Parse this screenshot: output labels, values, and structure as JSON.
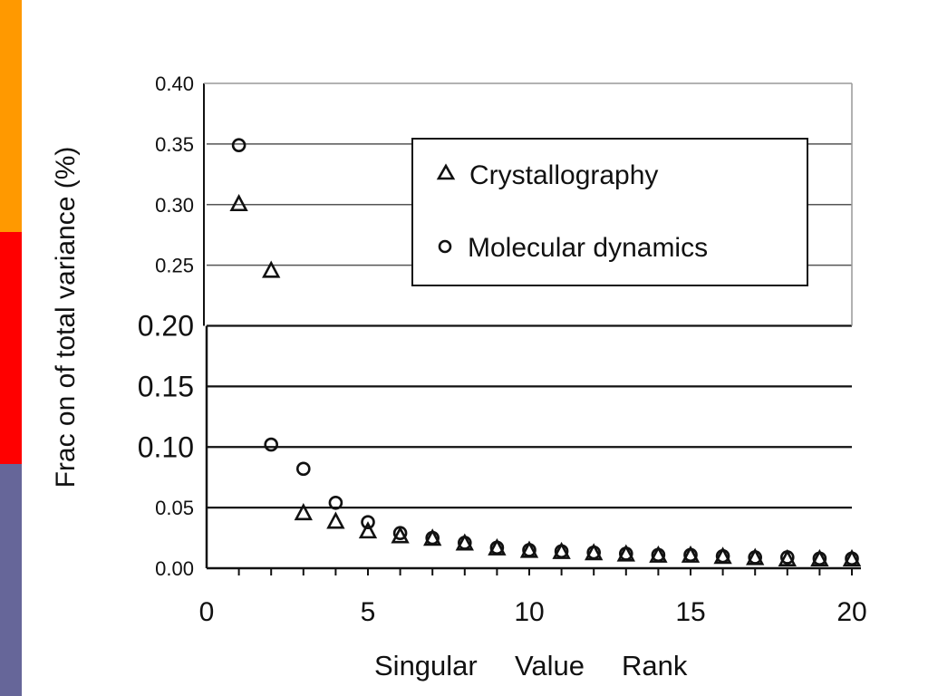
{
  "slide": {
    "accent_colors": [
      "#ff9900",
      "#ff0000",
      "#666699"
    ]
  },
  "chart_data": {
    "type": "scatter",
    "xlabel": "Singular Value Rank",
    "xlabel_words": [
      "Singular",
      "Value",
      "Rank"
    ],
    "ylabel": "Frac on of total variance (%)",
    "xlim": [
      0,
      20
    ],
    "ylim": [
      0,
      0.4
    ],
    "x_ticks": [
      "0",
      "5",
      "10",
      "15",
      "20"
    ],
    "y_ticks": [
      "0.00",
      "0.05",
      "0.10",
      "0.15",
      "0.20",
      "0.25",
      "0.30",
      "0.35",
      "0.40"
    ],
    "grid": true,
    "legend_position": "top-right",
    "series": [
      {
        "name": "Crystallography",
        "marker": "triangle",
        "x": [
          1,
          2,
          3,
          4,
          5,
          6,
          7,
          8,
          9,
          10,
          11,
          12,
          13,
          14,
          15,
          16,
          17,
          18,
          19,
          20
        ],
        "y": [
          0.3,
          0.245,
          0.045,
          0.038,
          0.03,
          0.026,
          0.024,
          0.02,
          0.016,
          0.014,
          0.013,
          0.012,
          0.011,
          0.01,
          0.01,
          0.009,
          0.008,
          0.007,
          0.007,
          0.007
        ]
      },
      {
        "name": "Molecular dynamics",
        "marker": "circle",
        "x": [
          1,
          2,
          3,
          4,
          5,
          6,
          7,
          8,
          9,
          10,
          11,
          12,
          13,
          14,
          15,
          16,
          17,
          18,
          19,
          20
        ],
        "y": [
          0.349,
          0.102,
          0.082,
          0.054,
          0.038,
          0.029,
          0.025,
          0.021,
          0.017,
          0.015,
          0.014,
          0.013,
          0.012,
          0.011,
          0.011,
          0.01,
          0.009,
          0.009,
          0.008,
          0.008
        ]
      }
    ]
  }
}
